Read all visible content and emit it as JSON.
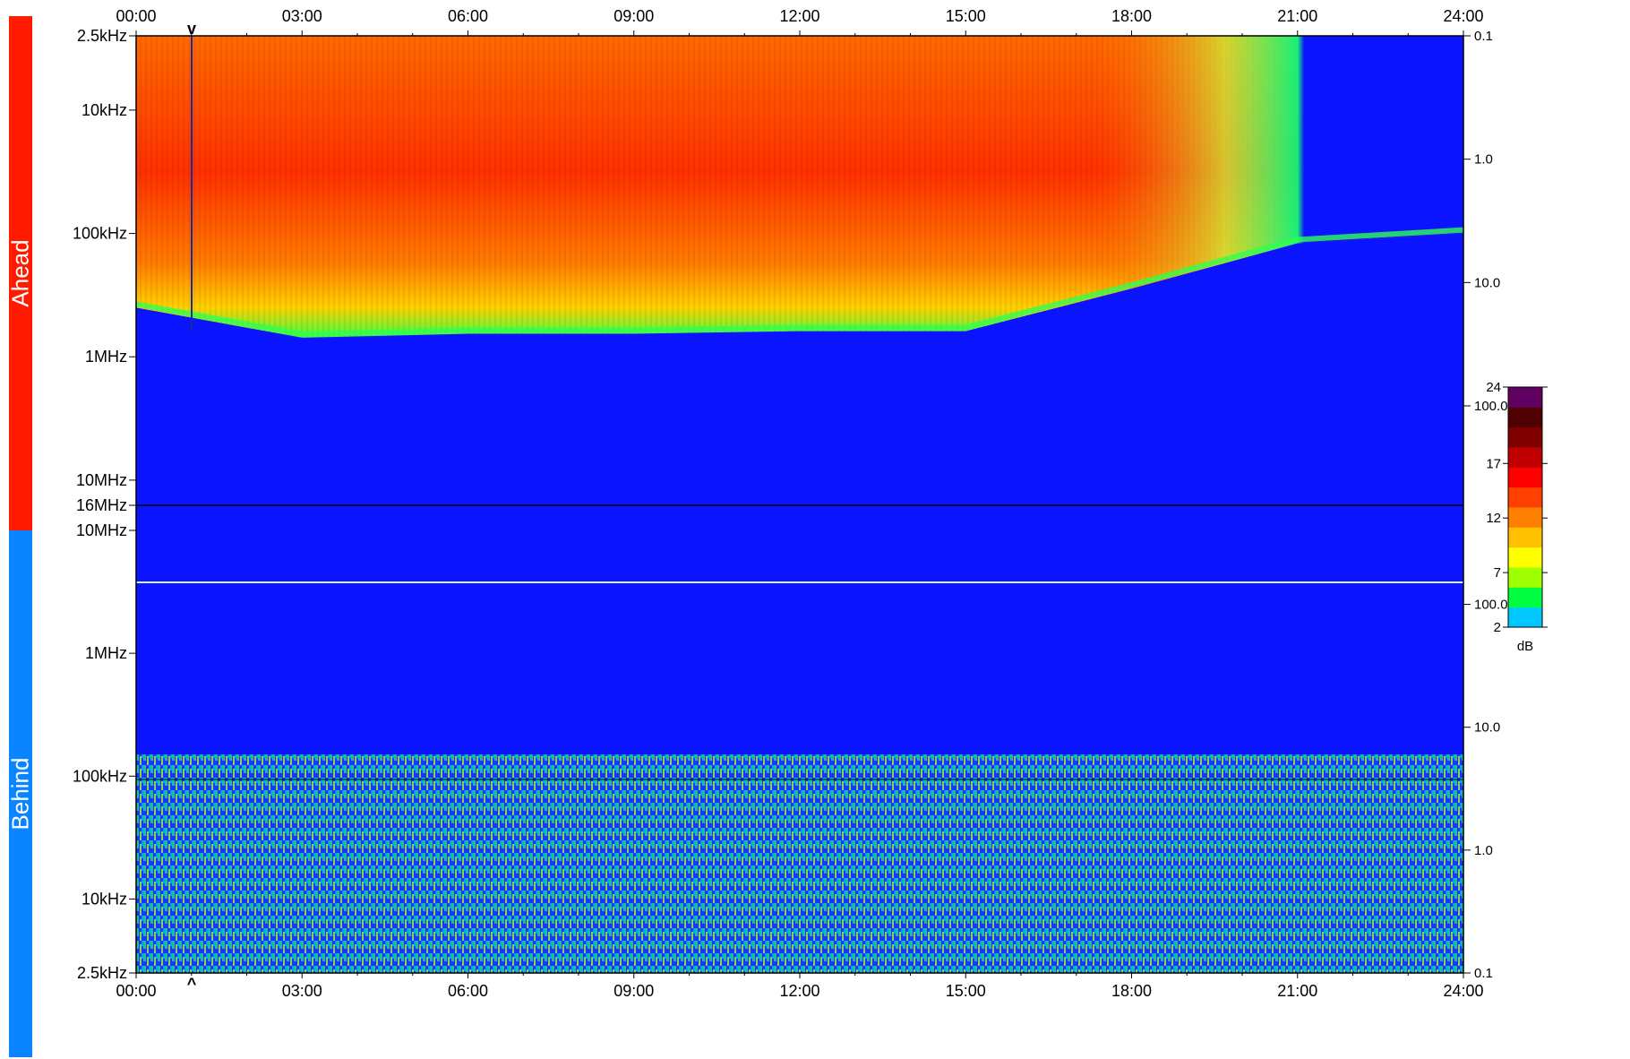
{
  "chart_data": {
    "type": "heatmap",
    "x_ticks": [
      "00:00",
      "03:00",
      "06:00",
      "09:00",
      "12:00",
      "15:00",
      "18:00",
      "21:00",
      "24:00"
    ],
    "panels": [
      {
        "name": "Ahead",
        "color": "#ff1a00",
        "freq_ticks": [
          "2.5kHz",
          "10kHz",
          "100kHz",
          "1MHz",
          "10MHz",
          "16MHz"
        ],
        "right_ticks": [
          "0.1",
          "1.0",
          "10.0",
          "100.0"
        ]
      },
      {
        "name": "Behind",
        "color": "#0a84ff",
        "freq_ticks": [
          "10MHz",
          "1MHz",
          "100kHz",
          "10kHz",
          "2.5kHz"
        ],
        "right_ticks": [
          "100.0",
          "10.0",
          "1.0",
          "0.1"
        ]
      }
    ],
    "colorbar": {
      "label": "dB",
      "ticks": [
        "24",
        "17",
        "12",
        "7",
        "2"
      ],
      "range": [
        2,
        24
      ],
      "colors": [
        "#00c8ff",
        "#00ff40",
        "#a0ff00",
        "#ffff00",
        "#ffc000",
        "#ff8000",
        "#ff4000",
        "#ff0000",
        "#c00000",
        "#800000",
        "#500000",
        "#600060"
      ]
    },
    "ahead_panel": {
      "low_frequency_cutoff": [
        {
          "time": "00:00",
          "freq": "400kHz"
        },
        {
          "time": "03:00",
          "freq": "700kHz"
        },
        {
          "time": "06:00",
          "freq": "650kHz"
        },
        {
          "time": "09:00",
          "freq": "650kHz"
        },
        {
          "time": "12:00",
          "freq": "620kHz"
        },
        {
          "time": "15:00",
          "freq": "620kHz"
        },
        {
          "time": "18:00",
          "freq": "280kHz"
        },
        {
          "time": "21:00",
          "freq": "120kHz"
        },
        {
          "time": "24:00",
          "freq": "100kHz"
        }
      ]
    },
    "behind_panel": {
      "noise_floor_top": "150kHz"
    }
  }
}
